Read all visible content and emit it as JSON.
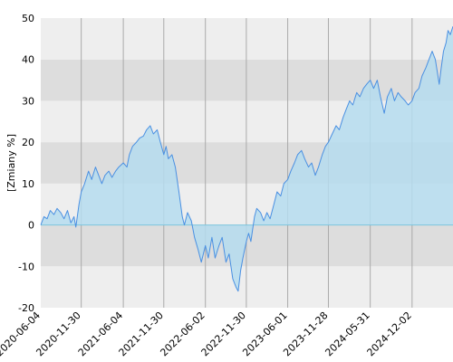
{
  "chart_data": {
    "type": "area",
    "title": "",
    "xlabel": "",
    "ylabel": "[Zmiany %]",
    "ylim": [
      -20,
      50
    ],
    "yticks": [
      -20,
      -10,
      0,
      10,
      20,
      30,
      40,
      50
    ],
    "xlim": [
      "2020-06-04",
      "2025-06-01"
    ],
    "xticks": [
      "2020-06-04",
      "2020-11-30",
      "2021-06-04",
      "2021-11-30",
      "2022-06-02",
      "2022-11-30",
      "2023-06-01",
      "2023-11-28",
      "2024-05-31",
      "2024-12-02"
    ],
    "grid": true,
    "band_colors": {
      "light": "#eeeeee",
      "dark": "#dddddd"
    },
    "line_color": "#4a90e2",
    "fill_color": "#b5dcee",
    "zero_line_color": "#7cc4dd",
    "points": [
      [
        "2020-06-04",
        0
      ],
      [
        "2020-06-18",
        2
      ],
      [
        "2020-07-02",
        1.5
      ],
      [
        "2020-07-16",
        3.5
      ],
      [
        "2020-08-01",
        2.5
      ],
      [
        "2020-08-15",
        4
      ],
      [
        "2020-08-31",
        3
      ],
      [
        "2020-09-15",
        1.5
      ],
      [
        "2020-09-30",
        3.5
      ],
      [
        "2020-10-15",
        0.5
      ],
      [
        "2020-10-29",
        2
      ],
      [
        "2020-11-06",
        -0.5
      ],
      [
        "2020-11-20",
        5
      ],
      [
        "2020-11-30",
        8
      ],
      [
        "2020-12-15",
        10
      ],
      [
        "2021-01-01",
        13
      ],
      [
        "2021-01-15",
        11
      ],
      [
        "2021-02-01",
        14
      ],
      [
        "2021-02-15",
        12
      ],
      [
        "2021-03-01",
        10
      ],
      [
        "2021-03-15",
        12
      ],
      [
        "2021-04-01",
        13
      ],
      [
        "2021-04-15",
        11.5
      ],
      [
        "2021-05-01",
        13
      ],
      [
        "2021-05-15",
        14
      ],
      [
        "2021-06-04",
        15
      ],
      [
        "2021-06-20",
        14
      ],
      [
        "2021-07-01",
        17
      ],
      [
        "2021-07-15",
        19
      ],
      [
        "2021-08-01",
        20
      ],
      [
        "2021-08-15",
        21
      ],
      [
        "2021-09-01",
        21.5
      ],
      [
        "2021-09-15",
        23
      ],
      [
        "2021-10-01",
        24
      ],
      [
        "2021-10-15",
        22
      ],
      [
        "2021-11-01",
        23
      ],
      [
        "2021-11-15",
        20
      ],
      [
        "2021-11-30",
        17
      ],
      [
        "2021-12-10",
        19
      ],
      [
        "2021-12-20",
        16
      ],
      [
        "2022-01-05",
        17
      ],
      [
        "2022-01-20",
        14
      ],
      [
        "2022-02-05",
        8
      ],
      [
        "2022-02-20",
        2
      ],
      [
        "2022-03-01",
        0
      ],
      [
        "2022-03-15",
        3
      ],
      [
        "2022-04-01",
        1
      ],
      [
        "2022-04-15",
        -3
      ],
      [
        "2022-05-01",
        -6
      ],
      [
        "2022-05-15",
        -9
      ],
      [
        "2022-06-02",
        -5
      ],
      [
        "2022-06-15",
        -8
      ],
      [
        "2022-07-01",
        -3
      ],
      [
        "2022-07-15",
        -8
      ],
      [
        "2022-08-01",
        -5
      ],
      [
        "2022-08-15",
        -3
      ],
      [
        "2022-09-01",
        -9
      ],
      [
        "2022-09-15",
        -7
      ],
      [
        "2022-10-01",
        -13
      ],
      [
        "2022-10-15",
        -15
      ],
      [
        "2022-10-25",
        -16
      ],
      [
        "2022-11-05",
        -11
      ],
      [
        "2022-11-15",
        -8
      ],
      [
        "2022-11-30",
        -4
      ],
      [
        "2022-12-10",
        -2
      ],
      [
        "2022-12-20",
        -4
      ],
      [
        "2023-01-05",
        2
      ],
      [
        "2023-01-15",
        4
      ],
      [
        "2023-02-01",
        3
      ],
      [
        "2023-02-15",
        1
      ],
      [
        "2023-03-01",
        3
      ],
      [
        "2023-03-15",
        1.5
      ],
      [
        "2023-04-01",
        5
      ],
      [
        "2023-04-15",
        8
      ],
      [
        "2023-05-01",
        7
      ],
      [
        "2023-05-15",
        10
      ],
      [
        "2023-06-01",
        11
      ],
      [
        "2023-06-15",
        13
      ],
      [
        "2023-07-01",
        15
      ],
      [
        "2023-07-15",
        17
      ],
      [
        "2023-08-01",
        18
      ],
      [
        "2023-08-15",
        16
      ],
      [
        "2023-09-01",
        14
      ],
      [
        "2023-09-15",
        15
      ],
      [
        "2023-10-01",
        12
      ],
      [
        "2023-10-15",
        14
      ],
      [
        "2023-11-01",
        17
      ],
      [
        "2023-11-15",
        19
      ],
      [
        "2023-11-28",
        20
      ],
      [
        "2023-12-15",
        22
      ],
      [
        "2024-01-01",
        24
      ],
      [
        "2024-01-15",
        23
      ],
      [
        "2024-02-01",
        26
      ],
      [
        "2024-02-15",
        28
      ],
      [
        "2024-03-01",
        30
      ],
      [
        "2024-03-15",
        29
      ],
      [
        "2024-04-01",
        32
      ],
      [
        "2024-04-15",
        31
      ],
      [
        "2024-05-01",
        33
      ],
      [
        "2024-05-15",
        34
      ],
      [
        "2024-05-31",
        35
      ],
      [
        "2024-06-15",
        33
      ],
      [
        "2024-07-01",
        35
      ],
      [
        "2024-07-15",
        31
      ],
      [
        "2024-08-01",
        27
      ],
      [
        "2024-08-15",
        31
      ],
      [
        "2024-09-01",
        33
      ],
      [
        "2024-09-15",
        30
      ],
      [
        "2024-10-01",
        32
      ],
      [
        "2024-10-15",
        31
      ],
      [
        "2024-11-01",
        30
      ],
      [
        "2024-11-15",
        29
      ],
      [
        "2024-12-02",
        30
      ],
      [
        "2024-12-15",
        32
      ],
      [
        "2025-01-01",
        33
      ],
      [
        "2025-01-15",
        36
      ],
      [
        "2025-02-01",
        38
      ],
      [
        "2025-02-15",
        40
      ],
      [
        "2025-03-01",
        42
      ],
      [
        "2025-03-15",
        40
      ],
      [
        "2025-04-01",
        34
      ],
      [
        "2025-04-10",
        38
      ],
      [
        "2025-04-20",
        42
      ],
      [
        "2025-05-01",
        44
      ],
      [
        "2025-05-10",
        47
      ],
      [
        "2025-05-20",
        46
      ],
      [
        "2025-06-01",
        48
      ]
    ]
  }
}
